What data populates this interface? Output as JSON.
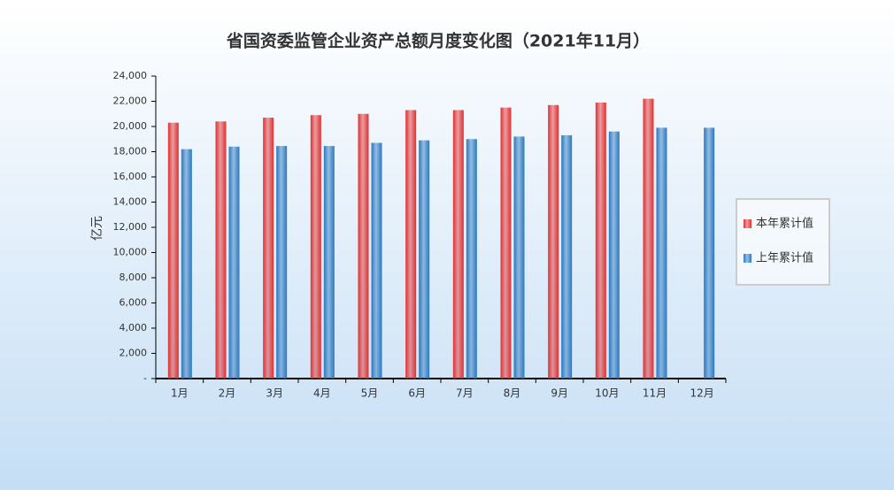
{
  "chart_data": {
    "type": "bar",
    "title": "省国资委监管企业资产总额月度变化图（2021年11月）",
    "y_label": "亿元",
    "categories": [
      "1月",
      "2月",
      "3月",
      "4月",
      "5月",
      "6月",
      "7月",
      "8月",
      "9月",
      "10月",
      "11月",
      "12月"
    ],
    "series": [
      {
        "name": "本年累计值",
        "color": "#e03030",
        "values": [
          20300,
          20400,
          20700,
          20900,
          21000,
          21300,
          21300,
          21500,
          21700,
          21900,
          22200,
          null
        ]
      },
      {
        "name": "上年累计值",
        "color": "#2a78c0",
        "values": [
          18200,
          18400,
          18450,
          18450,
          18700,
          18900,
          19000,
          19200,
          19300,
          19600,
          19900,
          19900
        ]
      }
    ],
    "ylim": [
      0,
      24000
    ],
    "yticks": [
      {
        "value": 0,
        "label": "-"
      },
      {
        "value": 2000,
        "label": "2,000"
      },
      {
        "value": 4000,
        "label": "4,000"
      },
      {
        "value": 6000,
        "label": "6,000"
      },
      {
        "value": 8000,
        "label": "8,000"
      },
      {
        "value": 10000,
        "label": "10,000"
      },
      {
        "value": 12000,
        "label": "12,000"
      },
      {
        "value": 14000,
        "label": "14,000"
      },
      {
        "value": 16000,
        "label": "16,000"
      },
      {
        "value": 18000,
        "label": "18,000"
      },
      {
        "value": 20000,
        "label": "20,000"
      },
      {
        "value": 22000,
        "label": "22,000"
      },
      {
        "value": 24000,
        "label": "24,000"
      }
    ],
    "legend": "right"
  }
}
